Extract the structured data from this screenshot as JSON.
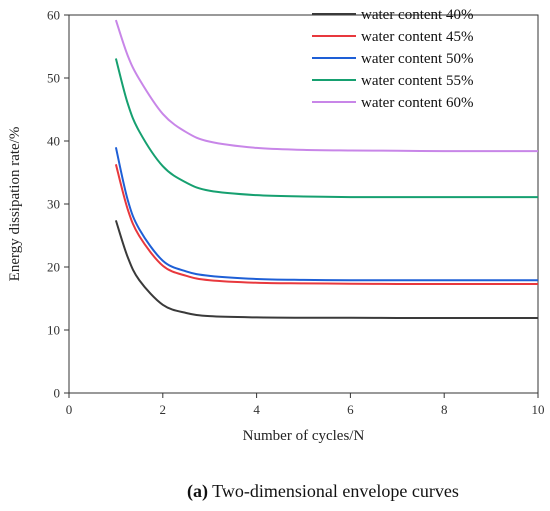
{
  "chart_data": {
    "type": "line",
    "xlabel": "Number of cycles/N",
    "ylabel": "Energy dissipation rate/%",
    "xlim": [
      0,
      10
    ],
    "ylim": [
      0,
      60
    ],
    "xticks": [
      "0",
      "2",
      "4",
      "6",
      "8",
      "10"
    ],
    "yticks": [
      "0",
      "10",
      "20",
      "30",
      "40",
      "50",
      "60"
    ],
    "grid": false,
    "legend_position": "top-right",
    "series": [
      {
        "name": "water content 40%",
        "color": "#3a3a3a",
        "x": [
          1,
          1.25,
          1.5,
          2,
          2.5,
          3,
          4,
          5,
          6,
          7,
          8,
          9,
          10
        ],
        "y": [
          27.4,
          21.6,
          17.9,
          14.0,
          12.7,
          12.2,
          12.0,
          11.95,
          11.95,
          11.9,
          11.9,
          11.9,
          11.9
        ]
      },
      {
        "name": "water content 45%",
        "color": "#e8383d",
        "x": [
          1,
          1.25,
          1.5,
          2,
          2.5,
          3,
          4,
          5,
          6,
          7,
          8,
          9,
          10
        ],
        "y": [
          36.3,
          29.2,
          24.9,
          20.2,
          18.6,
          17.9,
          17.5,
          17.4,
          17.35,
          17.3,
          17.3,
          17.3,
          17.3
        ]
      },
      {
        "name": "water content 50%",
        "color": "#1e5fd6",
        "x": [
          1,
          1.25,
          1.5,
          2,
          2.5,
          3,
          4,
          5,
          6,
          7,
          8,
          9,
          10
        ],
        "y": [
          39.0,
          30.7,
          26.0,
          21.0,
          19.3,
          18.6,
          18.1,
          17.95,
          17.9,
          17.9,
          17.9,
          17.9,
          17.9
        ]
      },
      {
        "name": "water content 55%",
        "color": "#16a070",
        "x": [
          1,
          1.25,
          1.5,
          2,
          2.5,
          3,
          4,
          5,
          6,
          7,
          8,
          9,
          10
        ],
        "y": [
          53.1,
          46.0,
          41.5,
          36.0,
          33.4,
          32.1,
          31.4,
          31.2,
          31.1,
          31.1,
          31.1,
          31.1,
          31.1
        ]
      },
      {
        "name": "water content 60%",
        "color": "#c886e8",
        "x": [
          1,
          1.25,
          1.5,
          2,
          2.5,
          3,
          4,
          5,
          6,
          7,
          8,
          9,
          10
        ],
        "y": [
          59.2,
          53.6,
          49.8,
          44.3,
          41.4,
          39.9,
          38.9,
          38.6,
          38.5,
          38.45,
          38.4,
          38.4,
          38.4
        ]
      }
    ]
  },
  "caption": {
    "label": "(a)",
    "text": " Two-dimensional envelope curves"
  }
}
